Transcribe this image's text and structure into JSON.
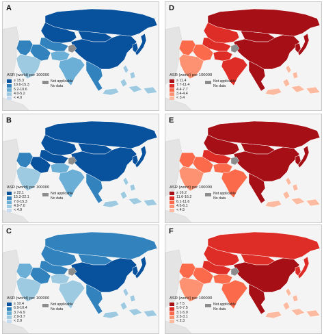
{
  "legend_title": "ASR (world) per 100000",
  "not_applicable": "Not applicable",
  "no_data": "No data",
  "panels": [
    {
      "letter": "A",
      "scheme": "blue",
      "classes": [
        "≥ 15.3",
        "10.6-15.3",
        "5.2-10.6",
        "4.0-5.2",
        "< 4.0"
      ],
      "colors": [
        "#08519c",
        "#3182bd",
        "#6baed6",
        "#9ecae1",
        "#c6dbef"
      ]
    },
    {
      "letter": "D",
      "scheme": "red",
      "classes": [
        "≥ 11.4",
        "7.7-11.4",
        "4.4-7.7",
        "3.4-4.4",
        "< 3.4"
      ],
      "colors": [
        "#a50f15",
        "#de2d26",
        "#fb6a4a",
        "#fc9272",
        "#fcbba1"
      ]
    },
    {
      "letter": "B",
      "scheme": "blue",
      "classes": [
        "≥ 22.1",
        "15.3-22.1",
        "7.0-15.3",
        "4.9-7.0",
        "< 4.9"
      ],
      "colors": [
        "#08519c",
        "#3182bd",
        "#6baed6",
        "#9ecae1",
        "#c6dbef"
      ]
    },
    {
      "letter": "E",
      "scheme": "red",
      "classes": [
        "≥ 16.2",
        "11.6-16.2",
        "6.1-11.6",
        "4.5-6.1",
        "< 4.5"
      ],
      "colors": [
        "#a50f15",
        "#de2d26",
        "#fb6a4a",
        "#fc9272",
        "#fcbba1"
      ]
    },
    {
      "letter": "C",
      "scheme": "blue",
      "classes": [
        "≥ 10.4",
        "6.9-10.4",
        "3.7-6.9",
        "2.9-3.7",
        "< 2.9"
      ],
      "colors": [
        "#08519c",
        "#3182bd",
        "#6baed6",
        "#9ecae1",
        "#c6dbef"
      ]
    },
    {
      "letter": "F",
      "scheme": "red",
      "classes": [
        "≥ 7.5",
        "5.0-7.5",
        "3.1-5.0",
        "2.3-3.1",
        "< 2.3"
      ],
      "colors": [
        "#a50f15",
        "#de2d26",
        "#fb6a4a",
        "#fc9272",
        "#fcbba1"
      ]
    }
  ],
  "region_classes": {
    "A": {
      "russia": 0,
      "china": 0,
      "mongolia": 0,
      "kazakhstan": 0,
      "central_asia": 1,
      "iran": 1,
      "middle_east": 1,
      "arabia": 3,
      "india": 2,
      "south_asia": 2,
      "indochina": 1,
      "japan": 0,
      "korea": 0,
      "insular": 3
    },
    "D": {
      "russia": 0,
      "china": 0,
      "mongolia": 0,
      "kazakhstan": 1,
      "central_asia": 1,
      "iran": 2,
      "middle_east": 2,
      "arabia": 3,
      "india": 1,
      "south_asia": 1,
      "indochina": 0,
      "japan": 0,
      "korea": 0,
      "insular": 4
    },
    "B": {
      "russia": 0,
      "china": 0,
      "mongolia": 0,
      "kazakhstan": 0,
      "central_asia": 0,
      "iran": 0,
      "middle_east": 1,
      "arabia": 3,
      "india": 2,
      "south_asia": 2,
      "indochina": 1,
      "japan": 0,
      "korea": 0,
      "insular": 3
    },
    "E": {
      "russia": 0,
      "china": 0,
      "mongolia": 0,
      "kazakhstan": 0,
      "central_asia": 1,
      "iran": 2,
      "middle_east": 2,
      "arabia": 3,
      "india": 2,
      "south_asia": 2,
      "indochina": 0,
      "japan": 0,
      "korea": 0,
      "insular": 4
    },
    "C": {
      "russia": 1,
      "china": 0,
      "mongolia": 1,
      "kazakhstan": 1,
      "central_asia": 1,
      "iran": 1,
      "middle_east": 2,
      "arabia": 3,
      "india": 3,
      "south_asia": 3,
      "indochina": 1,
      "japan": 0,
      "korea": 0,
      "insular": 3
    },
    "F": {
      "russia": 1,
      "china": 0,
      "mongolia": 1,
      "kazakhstan": 1,
      "central_asia": 1,
      "iran": 2,
      "middle_east": 2,
      "arabia": 3,
      "india": 2,
      "south_asia": 2,
      "indochina": 0,
      "japan": 1,
      "korea": 1,
      "insular": 4
    }
  }
}
